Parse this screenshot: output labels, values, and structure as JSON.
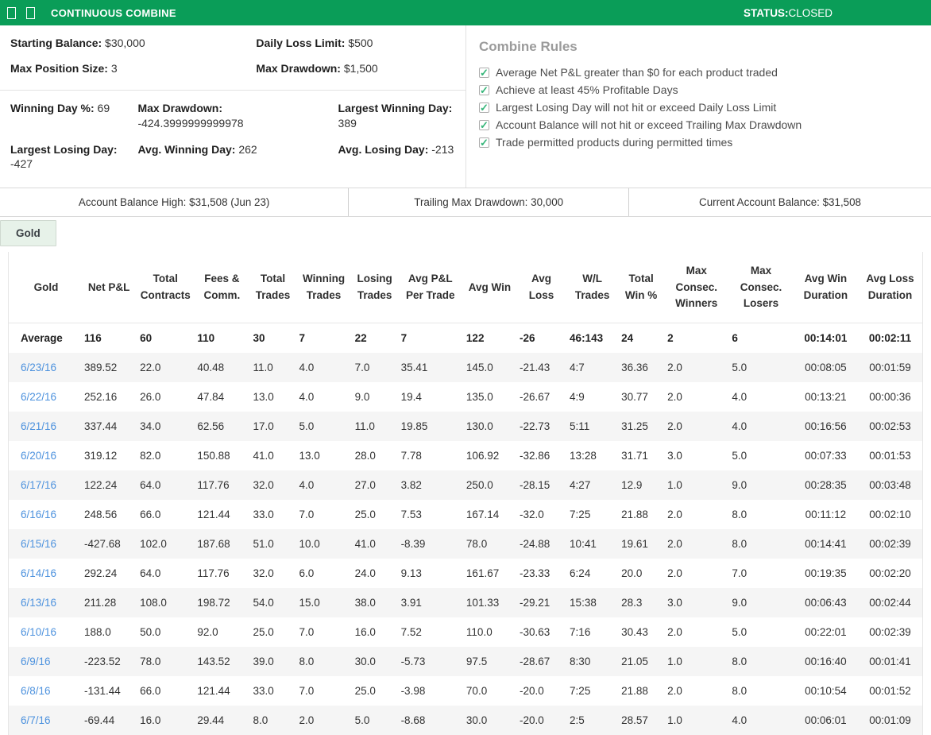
{
  "header": {
    "title": "CONTINUOUS COMBINE",
    "status_label": "STATUS:",
    "status_value": "CLOSED",
    "bar_color": "#0a9d58"
  },
  "stats": {
    "top": [
      {
        "label": "Starting Balance:",
        "value": "$30,000"
      },
      {
        "label": "Daily Loss Limit:",
        "value": "$500"
      },
      {
        "label": "Max Position Size:",
        "value": "3"
      },
      {
        "label": "Max Drawdown:",
        "value": "$1,500"
      }
    ],
    "bottom": [
      {
        "label": "Winning Day %:",
        "value": "69"
      },
      {
        "label": "Max Drawdown:",
        "value": "-424.3999999999978"
      },
      {
        "label": "Largest Winning Day:",
        "value": "389"
      },
      {
        "label": "Largest Losing Day:",
        "value": "-427"
      },
      {
        "label": "Avg. Winning Day:",
        "value": "262"
      },
      {
        "label": "Avg. Losing Day:",
        "value": "-213"
      }
    ]
  },
  "combine_rules": {
    "title": "Combine Rules",
    "check_color": "#35b579",
    "check_icon": "checked-checkbox-icon",
    "items": [
      "Average Net P&L greater than $0 for each product traded",
      "Achieve at least 45% Profitable Days",
      "Largest Losing Day will not hit or exceed Daily Loss Limit",
      "Account Balance will not hit or exceed Trailing Max Drawdown",
      "Trade permitted products during permitted times"
    ]
  },
  "balance_bar": {
    "cells": [
      "Account Balance High: $31,508 (Jun 23)",
      "Trailing Max Drawdown: 30,000",
      "Current Account Balance: $31,508"
    ]
  },
  "tab": {
    "label": "Gold"
  },
  "table": {
    "columns": [
      "Gold",
      "Net P&L",
      "Total Contracts",
      "Fees & Comm.",
      "Total Trades",
      "Winning Trades",
      "Losing Trades",
      "Avg P&L Per Trade",
      "Avg Win",
      "Avg Loss",
      "W/L Trades",
      "Total Win %",
      "Max Consec. Winners",
      "Max Consec. Losers",
      "Avg Win Duration",
      "Avg Loss Duration"
    ],
    "average_row": [
      "Average",
      "116",
      "60",
      "110",
      "30",
      "7",
      "22",
      "7",
      "122",
      "-26",
      "46:143",
      "24",
      "2",
      "6",
      "00:14:01",
      "00:02:11"
    ],
    "rows": [
      [
        "6/23/16",
        "389.52",
        "22.0",
        "40.48",
        "11.0",
        "4.0",
        "7.0",
        "35.41",
        "145.0",
        "-21.43",
        "4:7",
        "36.36",
        "2.0",
        "5.0",
        "00:08:05",
        "00:01:59"
      ],
      [
        "6/22/16",
        "252.16",
        "26.0",
        "47.84",
        "13.0",
        "4.0",
        "9.0",
        "19.4",
        "135.0",
        "-26.67",
        "4:9",
        "30.77",
        "2.0",
        "4.0",
        "00:13:21",
        "00:00:36"
      ],
      [
        "6/21/16",
        "337.44",
        "34.0",
        "62.56",
        "17.0",
        "5.0",
        "11.0",
        "19.85",
        "130.0",
        "-22.73",
        "5:11",
        "31.25",
        "2.0",
        "4.0",
        "00:16:56",
        "00:02:53"
      ],
      [
        "6/20/16",
        "319.12",
        "82.0",
        "150.88",
        "41.0",
        "13.0",
        "28.0",
        "7.78",
        "106.92",
        "-32.86",
        "13:28",
        "31.71",
        "3.0",
        "5.0",
        "00:07:33",
        "00:01:53"
      ],
      [
        "6/17/16",
        "122.24",
        "64.0",
        "117.76",
        "32.0",
        "4.0",
        "27.0",
        "3.82",
        "250.0",
        "-28.15",
        "4:27",
        "12.9",
        "1.0",
        "9.0",
        "00:28:35",
        "00:03:48"
      ],
      [
        "6/16/16",
        "248.56",
        "66.0",
        "121.44",
        "33.0",
        "7.0",
        "25.0",
        "7.53",
        "167.14",
        "-32.0",
        "7:25",
        "21.88",
        "2.0",
        "8.0",
        "00:11:12",
        "00:02:10"
      ],
      [
        "6/15/16",
        "-427.68",
        "102.0",
        "187.68",
        "51.0",
        "10.0",
        "41.0",
        "-8.39",
        "78.0",
        "-24.88",
        "10:41",
        "19.61",
        "2.0",
        "8.0",
        "00:14:41",
        "00:02:39"
      ],
      [
        "6/14/16",
        "292.24",
        "64.0",
        "117.76",
        "32.0",
        "6.0",
        "24.0",
        "9.13",
        "161.67",
        "-23.33",
        "6:24",
        "20.0",
        "2.0",
        "7.0",
        "00:19:35",
        "00:02:20"
      ],
      [
        "6/13/16",
        "211.28",
        "108.0",
        "198.72",
        "54.0",
        "15.0",
        "38.0",
        "3.91",
        "101.33",
        "-29.21",
        "15:38",
        "28.3",
        "3.0",
        "9.0",
        "00:06:43",
        "00:02:44"
      ],
      [
        "6/10/16",
        "188.0",
        "50.0",
        "92.0",
        "25.0",
        "7.0",
        "16.0",
        "7.52",
        "110.0",
        "-30.63",
        "7:16",
        "30.43",
        "2.0",
        "5.0",
        "00:22:01",
        "00:02:39"
      ],
      [
        "6/9/16",
        "-223.52",
        "78.0",
        "143.52",
        "39.0",
        "8.0",
        "30.0",
        "-5.73",
        "97.5",
        "-28.67",
        "8:30",
        "21.05",
        "1.0",
        "8.0",
        "00:16:40",
        "00:01:41"
      ],
      [
        "6/8/16",
        "-131.44",
        "66.0",
        "121.44",
        "33.0",
        "7.0",
        "25.0",
        "-3.98",
        "70.0",
        "-20.0",
        "7:25",
        "21.88",
        "2.0",
        "8.0",
        "00:10:54",
        "00:01:52"
      ],
      [
        "6/7/16",
        "-69.44",
        "16.0",
        "29.44",
        "8.0",
        "2.0",
        "5.0",
        "-8.68",
        "30.0",
        "-20.0",
        "2:5",
        "28.57",
        "1.0",
        "4.0",
        "00:06:01",
        "00:01:09"
      ]
    ]
  }
}
